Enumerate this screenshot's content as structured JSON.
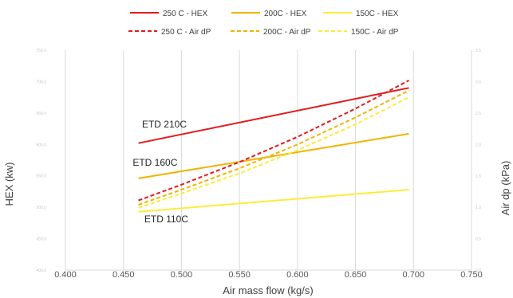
{
  "chart_data": {
    "type": "line",
    "title": "",
    "xlabel": "Air mass flow (kg/s)",
    "ylabel_left": "HEX (kw)",
    "ylabel_right": "Air dp (kPa)",
    "xlim": [
      0.4,
      0.75
    ],
    "x_ticks": [
      "0.400",
      "0.450",
      "0.500",
      "0.550",
      "0.600",
      "0.650",
      "0.700",
      "0.750"
    ],
    "y_left_ticks": [
      "400.0",
      "450.0",
      "500.0",
      "550.0",
      "600.0",
      "650.0",
      "700.0",
      "750.0"
    ],
    "y_right_ticks": [
      "0.0",
      "0.5",
      "1.0",
      "1.5",
      "2.0",
      "2.5",
      "3.0",
      "3.5"
    ],
    "ylim_left": [
      400,
      750
    ],
    "ylim_right": [
      0,
      3.5
    ],
    "grid": "vertical",
    "legend_position": "top",
    "series": [
      {
        "name": "250 C - HEX",
        "axis": "left",
        "style": "solid",
        "color": "#e31a1c",
        "x": [
          0.463,
          0.696
        ],
        "y": [
          602,
          690
        ]
      },
      {
        "name": "200C - HEX",
        "axis": "left",
        "style": "solid",
        "color": "#f0b400",
        "x": [
          0.463,
          0.696
        ],
        "y": [
          546,
          617
        ]
      },
      {
        "name": "150C - HEX",
        "axis": "left",
        "style": "solid",
        "color": "#ffeb3b",
        "x": [
          0.463,
          0.696
        ],
        "y": [
          493,
          528
        ]
      },
      {
        "name": "250 C - Air dP",
        "axis": "right",
        "style": "dashed",
        "color": "#e31a1c",
        "x": [
          0.463,
          0.5,
          0.55,
          0.6,
          0.65,
          0.696
        ],
        "y": [
          1.11,
          1.36,
          1.72,
          2.12,
          2.57,
          3.02
        ]
      },
      {
        "name": "200C - Air dP",
        "axis": "right",
        "style": "dashed",
        "color": "#f0b400",
        "x": [
          0.463,
          0.5,
          0.55,
          0.6,
          0.65,
          0.696
        ],
        "y": [
          1.04,
          1.28,
          1.62,
          2.0,
          2.43,
          2.86
        ]
      },
      {
        "name": "150C - Air dP",
        "axis": "right",
        "style": "dashed",
        "color": "#ffeb3b",
        "x": [
          0.463,
          0.5,
          0.55,
          0.6,
          0.65,
          0.696
        ],
        "y": [
          0.99,
          1.22,
          1.54,
          1.91,
          2.32,
          2.75
        ]
      }
    ],
    "annotations": [
      {
        "text": "ETD 210C",
        "x": 0.466,
        "y": 627
      },
      {
        "text": "ETD 160C",
        "x": 0.458,
        "y": 566
      },
      {
        "text": "ETD 110C",
        "x": 0.468,
        "y": 476
      }
    ]
  }
}
